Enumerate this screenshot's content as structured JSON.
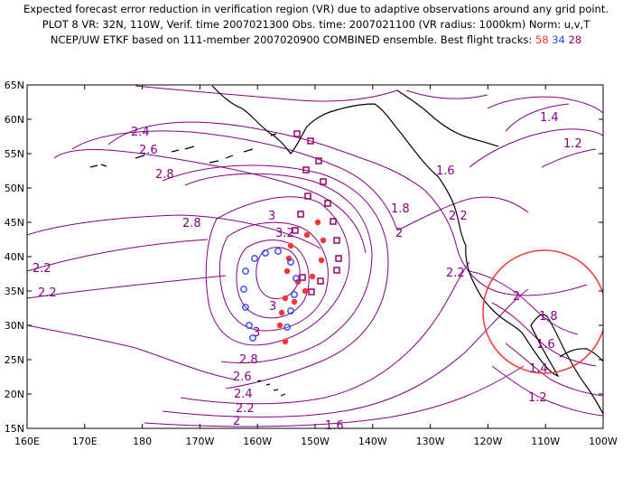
{
  "header": {
    "line1": "Expected forecast error reduction in verification region (VR) due to adaptive observations around any grid point.",
    "line2": "PLOT 8 VR: 32N, 110W, Verif. time 2007021300 Obs. time: 2007021100 (VR radius: 1000km) Norm: u,v,T",
    "line3_prefix": "NCEP/UW ETKF based on 111-member 2007020900 COMBINED ensemble.  Best flight tracks:",
    "track_numbers": [
      "58",
      "34",
      "28"
    ]
  },
  "axes": {
    "lon_labels": [
      "160E",
      "170E",
      "180",
      "170W",
      "160W",
      "150W",
      "140W",
      "130W",
      "120W",
      "110W",
      "100W"
    ],
    "lat_labels": [
      "15N",
      "20N",
      "25N",
      "30N",
      "35N",
      "40N",
      "45N",
      "50N",
      "55N",
      "60N",
      "65N"
    ]
  },
  "contour_labels": [
    "2.4",
    "2.6",
    "2.8",
    "2.8",
    "3",
    "3.2",
    "3",
    "3",
    "2.2",
    "2.2",
    "1.4",
    "1.2",
    "1.6",
    "1.8",
    "2",
    "2.2",
    "2.2",
    "2",
    "1.8",
    "1.6",
    "1.4",
    "1.2",
    "2.8",
    "2.6",
    "2.4",
    "2.2",
    "2",
    "1.6"
  ],
  "verification_region": {
    "lat": 32,
    "lon": -110,
    "radius_km": 1000
  },
  "colors": {
    "contour": "#880088",
    "coast": "#000000",
    "vr_circle": "#ff3333",
    "track_58": "#ff3333",
    "track_34": "#3344ff",
    "track_28": "#990066"
  }
}
